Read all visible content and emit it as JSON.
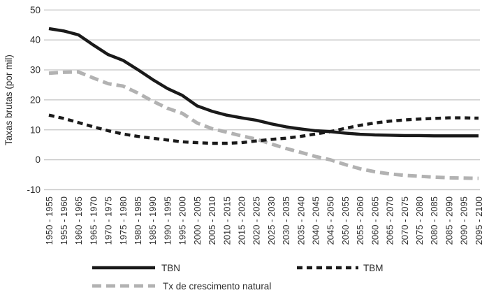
{
  "chart_data": {
    "type": "line",
    "title": "",
    "xlabel": "",
    "ylabel": "Taxas brutas (por mil)",
    "ylim": [
      -10,
      50
    ],
    "yticks": [
      50,
      40,
      30,
      20,
      10,
      0,
      -10
    ],
    "grid": true,
    "legend_position": "bottom",
    "categories": [
      "1950 - 1955",
      "1955 - 1960",
      "1960 - 1965",
      "1965 - 1970",
      "1970 - 1975",
      "1975 - 1980",
      "1980 - 1985",
      "1985 - 1990",
      "1990 - 1995",
      "1995 - 2000",
      "2000 - 2005",
      "2005 - 2010",
      "2010 - 2015",
      "2015 - 2020",
      "2020 - 2025",
      "2025 - 2030",
      "2030 - 2035",
      "2035 - 2040",
      "2040 - 2045",
      "2045 - 2050",
      "2050 - 2055",
      "2055 - 2060",
      "2060 - 2065",
      "2065 - 2070",
      "2070 - 2075",
      "2075 - 2080",
      "2080 - 2085",
      "2085 - 2090",
      "2090 - 2095",
      "2095 - 2100"
    ],
    "series": [
      {
        "name": "TBN",
        "color": "#1a1a1a",
        "style": "solid",
        "values": [
          43.8,
          43.0,
          41.7,
          38.3,
          35.1,
          33.2,
          30.1,
          26.8,
          23.8,
          21.5,
          18.0,
          16.2,
          14.9,
          14.0,
          13.2,
          12.0,
          11.0,
          10.3,
          9.7,
          9.4,
          8.9,
          8.5,
          8.3,
          8.2,
          8.1,
          8.1,
          8.0,
          8.0,
          8.0,
          8.0
        ]
      },
      {
        "name": "TBM",
        "color": "#1a1a1a",
        "style": "dashed",
        "values": [
          14.9,
          13.8,
          12.4,
          11.0,
          9.7,
          8.6,
          7.8,
          7.2,
          6.6,
          6.0,
          5.7,
          5.5,
          5.5,
          5.7,
          6.3,
          6.8,
          7.2,
          7.8,
          8.6,
          9.4,
          10.5,
          11.5,
          12.3,
          12.9,
          13.3,
          13.6,
          13.8,
          14.0,
          14.0,
          13.9
        ]
      },
      {
        "name": "Tx de crescimento natural",
        "color": "#b2b2b2",
        "style": "long-dashed",
        "values": [
          28.9,
          29.2,
          29.3,
          27.3,
          25.4,
          24.6,
          22.3,
          19.6,
          17.2,
          15.5,
          12.3,
          10.4,
          9.2,
          8.0,
          6.9,
          5.3,
          3.8,
          2.5,
          1.1,
          0.0,
          -1.6,
          -3.0,
          -4.0,
          -4.7,
          -5.2,
          -5.5,
          -5.8,
          -6.0,
          -6.1,
          -6.2
        ]
      }
    ]
  }
}
